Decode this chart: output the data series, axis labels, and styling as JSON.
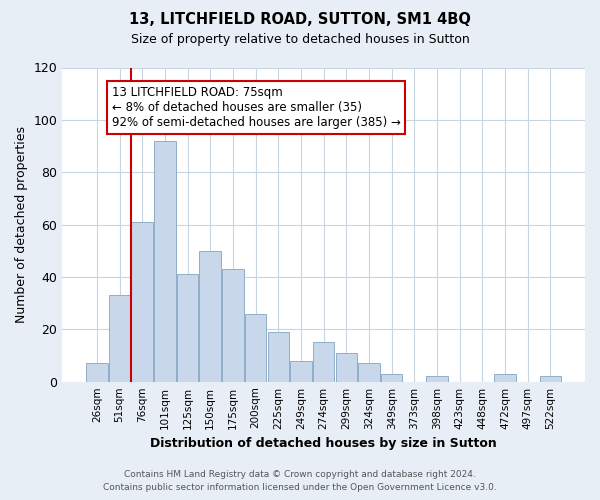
{
  "title": "13, LITCHFIELD ROAD, SUTTON, SM1 4BQ",
  "subtitle": "Size of property relative to detached houses in Sutton",
  "xlabel": "Distribution of detached houses by size in Sutton",
  "ylabel": "Number of detached properties",
  "categories": [
    "26sqm",
    "51sqm",
    "76sqm",
    "101sqm",
    "125sqm",
    "150sqm",
    "175sqm",
    "200sqm",
    "225sqm",
    "249sqm",
    "274sqm",
    "299sqm",
    "324sqm",
    "349sqm",
    "373sqm",
    "398sqm",
    "423sqm",
    "448sqm",
    "472sqm",
    "497sqm",
    "522sqm"
  ],
  "values": [
    7,
    33,
    61,
    92,
    41,
    50,
    43,
    26,
    19,
    8,
    15,
    11,
    7,
    3,
    0,
    2,
    0,
    0,
    3,
    0,
    2
  ],
  "bar_color": "#c8d8ea",
  "bar_edge_color": "#90aec8",
  "vline_x_index": 2,
  "vline_color": "#cc0000",
  "annotation_box_text": "13 LITCHFIELD ROAD: 75sqm\n← 8% of detached houses are smaller (35)\n92% of semi-detached houses are larger (385) →",
  "annotation_box_color": "#cc0000",
  "ylim": [
    0,
    120
  ],
  "yticks": [
    0,
    20,
    40,
    60,
    80,
    100,
    120
  ],
  "footer_line1": "Contains HM Land Registry data © Crown copyright and database right 2024.",
  "footer_line2": "Contains public sector information licensed under the Open Government Licence v3.0.",
  "bg_color": "#e8eef5",
  "plot_bg_color": "#ffffff",
  "grid_color": "#c8d4e0"
}
